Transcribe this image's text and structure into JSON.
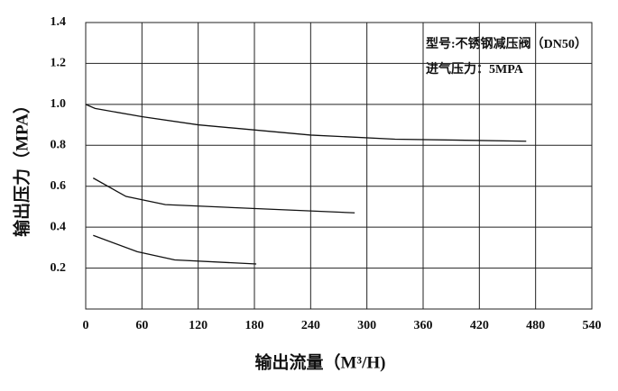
{
  "chart_data": {
    "type": "line",
    "x_label": "输出流量（M³/H)",
    "y_label": "输出压力（MPA）",
    "annotations": [
      "型号:不锈钢减压阀（DN50）",
      "进气压力：5MPA"
    ],
    "xlim": [
      0,
      540
    ],
    "xticks": [
      0,
      60,
      120,
      180,
      240,
      300,
      360,
      420,
      480,
      540
    ],
    "ylim": [
      0,
      1.4
    ],
    "yticks": [
      0.2,
      0.4,
      0.6,
      0.8,
      {
        "value": 1,
        "label": "1.0"
      },
      1.2,
      1.4
    ],
    "grid": true,
    "series": [
      {
        "color": "#111111",
        "x": [
          0,
          10,
          60,
          120,
          240,
          330,
          470
        ],
        "values": [
          1.0,
          0.98,
          0.94,
          0.9,
          0.85,
          0.83,
          0.82
        ]
      },
      {
        "color": "#111111",
        "x": [
          8,
          43,
          85,
          287
        ],
        "values": [
          0.64,
          0.55,
          0.51,
          0.47
        ]
      },
      {
        "color": "#111111",
        "x": [
          8,
          55,
          95,
          182
        ],
        "values": [
          0.36,
          0.28,
          0.24,
          0.22
        ]
      }
    ]
  }
}
